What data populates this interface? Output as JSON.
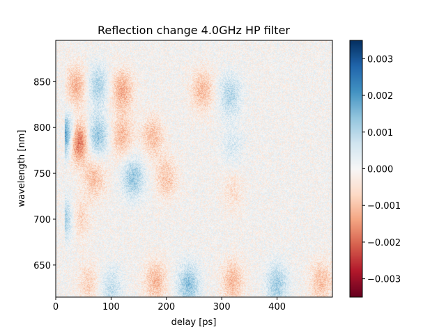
{
  "chart_data": {
    "type": "heatmap",
    "title": "Reflection change 4.0GHz HP filter",
    "xlabel": "delay [ps]",
    "ylabel": "wavelength [nm]",
    "xlim": [
      0,
      500
    ],
    "ylim": [
      615,
      895
    ],
    "x_ticks": [
      0,
      100,
      200,
      300,
      400
    ],
    "y_ticks": [
      650,
      700,
      750,
      800,
      850
    ],
    "x_tick_labels": [
      "0",
      "100",
      "200",
      "300",
      "400"
    ],
    "y_tick_labels": [
      "650",
      "700",
      "750",
      "800",
      "850"
    ],
    "colormap": "RdBu",
    "color_range": [
      -0.0035,
      0.0035
    ],
    "colorbar_ticks": [
      0.003,
      0.002,
      0.001,
      0.0,
      -0.001,
      -0.002,
      -0.003
    ],
    "colorbar_tick_labels": [
      "0.003",
      "0.002",
      "0.001",
      "0.000",
      "−0.001",
      "−0.002",
      "−0.003"
    ],
    "signal_onset_delay": 17,
    "features": [
      {
        "delay": 18,
        "wavelength": 790,
        "value": 0.0028
      },
      {
        "delay": 18,
        "wavelength": 700,
        "value": 0.0015
      },
      {
        "delay": 38,
        "wavelength": 785,
        "value": -0.0026
      },
      {
        "delay": 38,
        "wavelength": 845,
        "value": -0.0012
      },
      {
        "delay": 38,
        "wavelength": 700,
        "value": -0.001
      },
      {
        "delay": 75,
        "wavelength": 790,
        "value": 0.0014
      },
      {
        "delay": 75,
        "wavelength": 845,
        "value": 0.0011
      },
      {
        "delay": 70,
        "wavelength": 745,
        "value": -0.001
      },
      {
        "delay": 120,
        "wavelength": 840,
        "value": -0.0013
      },
      {
        "delay": 120,
        "wavelength": 790,
        "value": -0.0011
      },
      {
        "delay": 140,
        "wavelength": 745,
        "value": 0.0013
      },
      {
        "delay": 175,
        "wavelength": 790,
        "value": -0.001
      },
      {
        "delay": 200,
        "wavelength": 745,
        "value": -0.0009
      },
      {
        "delay": 265,
        "wavelength": 840,
        "value": -0.0011
      },
      {
        "delay": 315,
        "wavelength": 835,
        "value": 0.001
      },
      {
        "delay": 320,
        "wavelength": 780,
        "value": 0.0005
      },
      {
        "delay": 320,
        "wavelength": 730,
        "value": -0.0005
      },
      {
        "delay": 60,
        "wavelength": 630,
        "value": -0.0007
      },
      {
        "delay": 100,
        "wavelength": 625,
        "value": 0.0008
      },
      {
        "delay": 180,
        "wavelength": 632,
        "value": -0.0011
      },
      {
        "delay": 240,
        "wavelength": 628,
        "value": 0.0014
      },
      {
        "delay": 320,
        "wavelength": 632,
        "value": -0.0011
      },
      {
        "delay": 400,
        "wavelength": 628,
        "value": 0.0012
      },
      {
        "delay": 480,
        "wavelength": 632,
        "value": -0.001
      }
    ]
  }
}
